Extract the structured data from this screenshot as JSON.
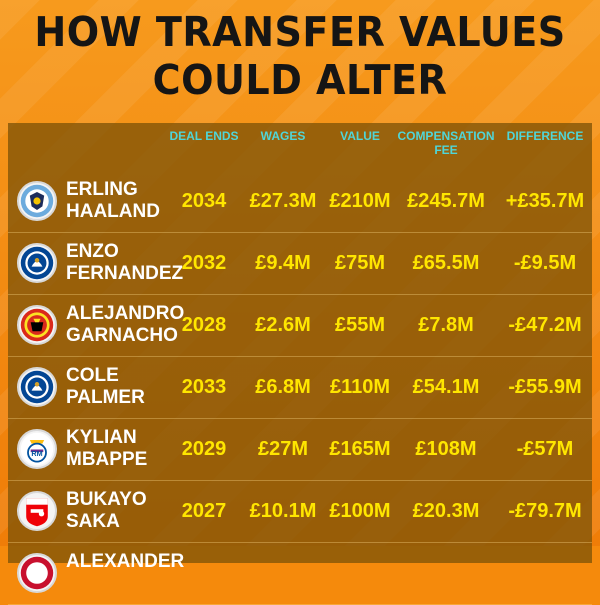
{
  "title": {
    "line1": "HOW TRANSFER VALUES",
    "line2": "COULD ALTER"
  },
  "headers": {
    "deal_ends": "DEAL ENDS",
    "wages": "WAGES",
    "value": "VALUE",
    "compensation_1": "COMPENSATION",
    "compensation_2": "FEE",
    "difference": "DIFFERENCE"
  },
  "rows": [
    {
      "first": "ERLING",
      "last": "HAALAND",
      "deal_ends": "2034",
      "wages": "£27.3M",
      "value": "£210M",
      "compensation": "£245.7M",
      "difference": "+£35.7M",
      "crest": "man-city-crest-icon"
    },
    {
      "first": "ENZO",
      "last": "FERNANDEZ",
      "deal_ends": "2032",
      "wages": "£9.4M",
      "value": "£75M",
      "compensation": "£65.5M",
      "difference": "-£9.5M",
      "crest": "chelsea-crest-icon"
    },
    {
      "first": "ALEJANDRO",
      "last": "GARNACHO",
      "deal_ends": "2028",
      "wages": "£2.6M",
      "value": "£55M",
      "compensation": "£7.8M",
      "difference": "-£47.2M",
      "crest": "man-united-crest-icon"
    },
    {
      "first": "COLE",
      "last": "PALMER",
      "deal_ends": "2033",
      "wages": "£6.8M",
      "value": "£110M",
      "compensation": "£54.1M",
      "difference": "-£55.9M",
      "crest": "chelsea-crest-icon"
    },
    {
      "first": "KYLIAN",
      "last": "MBAPPE",
      "deal_ends": "2029",
      "wages": "£27M",
      "value": "£165M",
      "compensation": "£108M",
      "difference": "-£57M",
      "crest": "real-madrid-crest-icon"
    },
    {
      "first": "BUKAYO",
      "last": "SAKA",
      "deal_ends": "2027",
      "wages": "£10.1M",
      "value": "£100M",
      "compensation": "£20.3M",
      "difference": "-£79.7M",
      "crest": "arsenal-crest-icon"
    },
    {
      "first": "ALEXANDER",
      "last": "",
      "deal_ends": "",
      "wages": "",
      "value": "",
      "compensation": "",
      "difference": "",
      "crest": "liverpool-crest-icon"
    }
  ],
  "colors": {
    "background": "#f58a0c",
    "header_text": "#4fd6d8",
    "value_text": "#ffe600",
    "name_text": "#ffffff",
    "panel": "#82550a"
  }
}
